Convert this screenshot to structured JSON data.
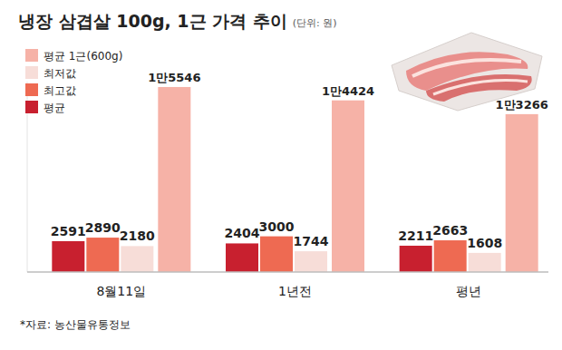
{
  "chart_data": {
    "type": "bar",
    "title": "냉장 삼겹살 100g, 1근 가격 추이",
    "subtitle": "(단위: 원)",
    "categories": [
      "8월11일",
      "1년전",
      "평년"
    ],
    "series": [
      {
        "name": "평균",
        "color": "#c8202f",
        "values": [
          2591,
          2404,
          2211
        ]
      },
      {
        "name": "최고값",
        "color": "#ee6a52",
        "values": [
          2890,
          3000,
          2663
        ]
      },
      {
        "name": "최저값",
        "color": "#f7ddd8",
        "values": [
          2180,
          1744,
          1608
        ]
      },
      {
        "name": "평균 1근(600g)",
        "color": "#f6b2a7",
        "values": [
          15546,
          14424,
          13266
        ],
        "value_labels": [
          "1만5546",
          "1만4424",
          "1만3266"
        ]
      }
    ],
    "ylim": [
      0,
      16000
    ],
    "data_labels": true,
    "tick_labels": "x",
    "legend": "top-left",
    "source": "*자료: 농산물유통정보"
  }
}
